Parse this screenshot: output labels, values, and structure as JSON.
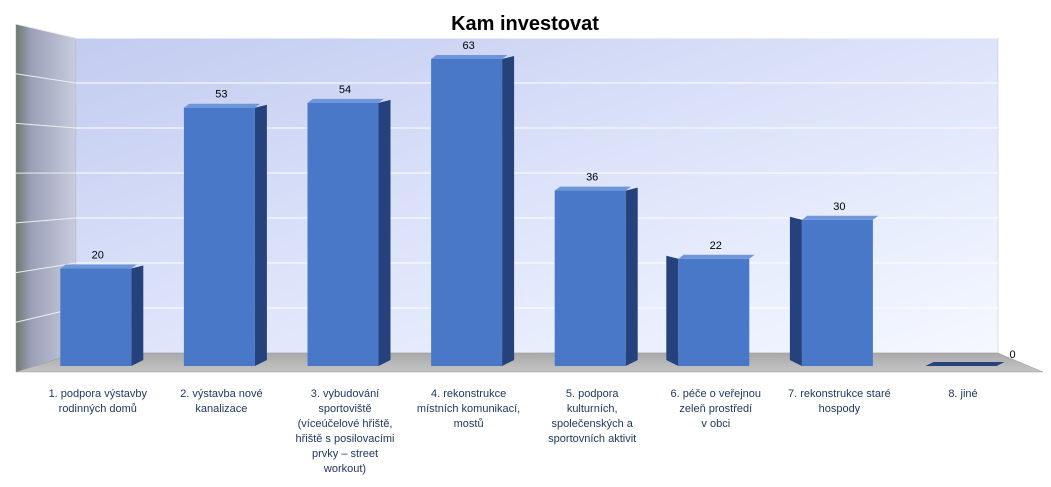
{
  "chart_data": {
    "type": "bar",
    "title": "Kam investovat",
    "categories": [
      [
        "1. podpora výstavby",
        "rodinných domů"
      ],
      [
        "2. výstavba  nové",
        "kanalizace"
      ],
      [
        "3. vybudování",
        "sportoviště",
        "(víceúčelové hřiště,",
        "hřiště s posilovacími",
        "prvky – street",
        "workout)"
      ],
      [
        "4. rekonstrukce",
        "místních komunikací,",
        "mostů"
      ],
      [
        "5. podpora",
        "kulturních,",
        "společenských a",
        "sportovních aktivit"
      ],
      [
        "6. péče o veřejnou",
        "zeleň prostředí",
        "v obci"
      ],
      [
        "7. rekonstrukce staré",
        "hospody"
      ],
      [
        "8. jiné"
      ]
    ],
    "values": [
      20,
      53,
      54,
      63,
      36,
      22,
      30,
      0
    ],
    "ylim": [
      0,
      70
    ],
    "grid": true,
    "legend": "none",
    "colors": {
      "bar": "#4a78c9",
      "bar_side": "#25427c",
      "bar_top": "#6f95da",
      "floor": "#b0b0b0",
      "wall_top": "#c3cbf0",
      "wall_bottom": "#f2f6ff"
    }
  }
}
